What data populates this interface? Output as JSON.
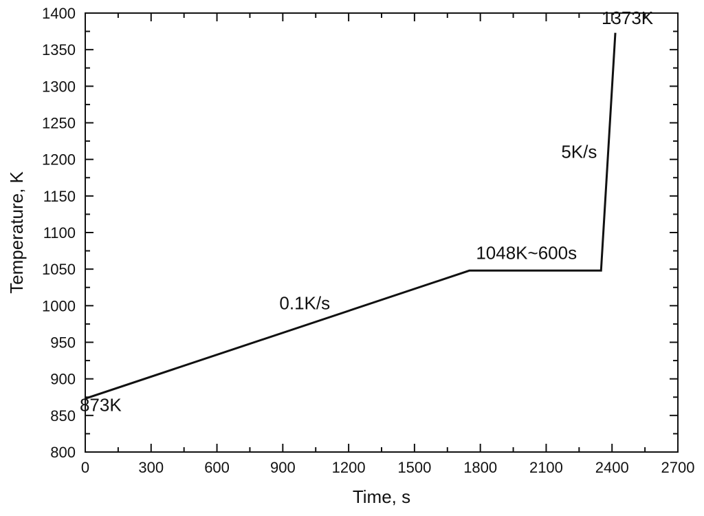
{
  "chart_data": {
    "type": "line",
    "title": "",
    "xlabel": "Time, s",
    "ylabel": "Temperature, K",
    "xlim": [
      0,
      2700
    ],
    "ylim": [
      800,
      1400
    ],
    "x_ticks": [
      0,
      300,
      600,
      900,
      1200,
      1500,
      1800,
      2100,
      2400,
      2700
    ],
    "y_ticks": [
      800,
      850,
      900,
      950,
      1000,
      1050,
      1100,
      1150,
      1200,
      1250,
      1300,
      1350,
      1400
    ],
    "grid": false,
    "legend": "none",
    "line_color": "#111111",
    "series": [
      {
        "x": [
          0,
          1750,
          2350,
          2415
        ],
        "y": [
          873,
          1048,
          1048,
          1373
        ]
      }
    ],
    "annotations": [
      {
        "text": "873K",
        "x": 70,
        "y": 856
      },
      {
        "text": "0.1K/s",
        "x": 1000,
        "y": 995
      },
      {
        "text": "1048K~600s",
        "x": 2010,
        "y": 1064
      },
      {
        "text": "5K/s",
        "x": 2250,
        "y": 1202
      },
      {
        "text": "1373K",
        "x": 2470,
        "y": 1385
      }
    ]
  }
}
